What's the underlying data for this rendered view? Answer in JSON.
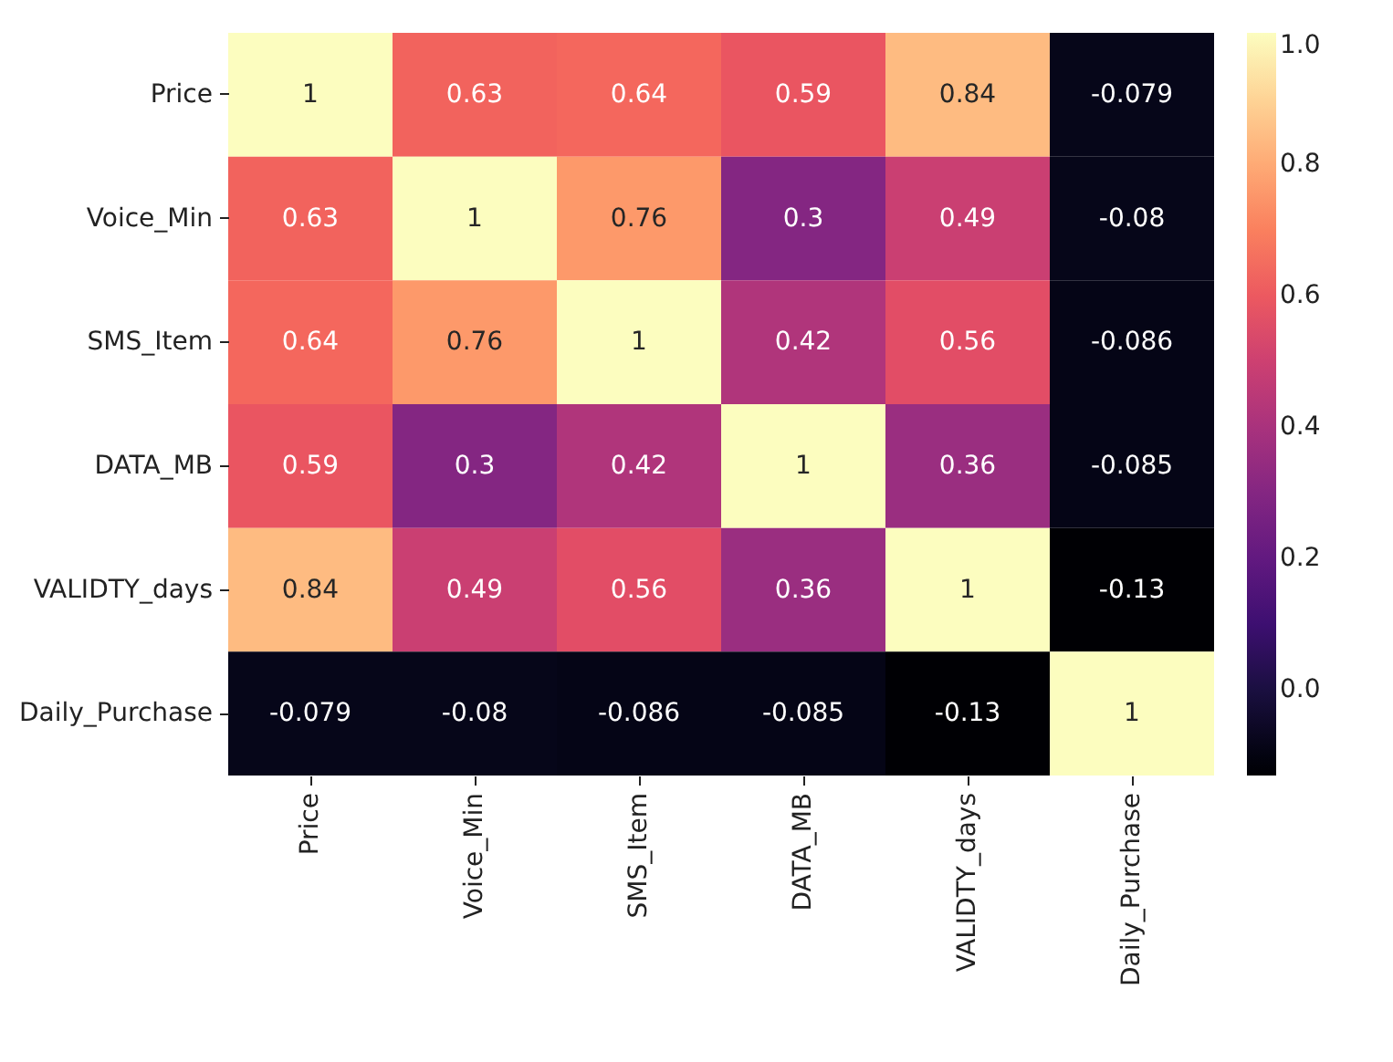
{
  "chart_data": {
    "type": "heatmap",
    "categories": [
      "Price",
      "Voice_Min",
      "SMS_Item",
      "DATA_MB",
      "VALIDTY_days",
      "Daily_Purchase"
    ],
    "y_categories": [
      "Price",
      "Voice_Min",
      "SMS_Item",
      "DATA_MB",
      "VALIDTY_days",
      "Daily_Purchase"
    ],
    "cells": [
      [
        1,
        0.63,
        0.64,
        0.59,
        0.84,
        -0.079
      ],
      [
        0.63,
        1,
        0.76,
        0.3,
        0.49,
        -0.08
      ],
      [
        0.64,
        0.76,
        1,
        0.42,
        0.56,
        -0.086
      ],
      [
        0.59,
        0.3,
        0.42,
        1,
        0.36,
        -0.085
      ],
      [
        0.84,
        0.49,
        0.56,
        0.36,
        1,
        -0.13
      ],
      [
        -0.079,
        -0.08,
        -0.086,
        -0.085,
        -0.13,
        1
      ]
    ],
    "clim": [
      -0.13,
      1
    ],
    "cticks": [
      {
        "value": 0,
        "label": "0.0"
      },
      0.2,
      0.4,
      0.6,
      0.8,
      {
        "value": 1,
        "label": "1.0"
      }
    ],
    "data_labels": true
  }
}
